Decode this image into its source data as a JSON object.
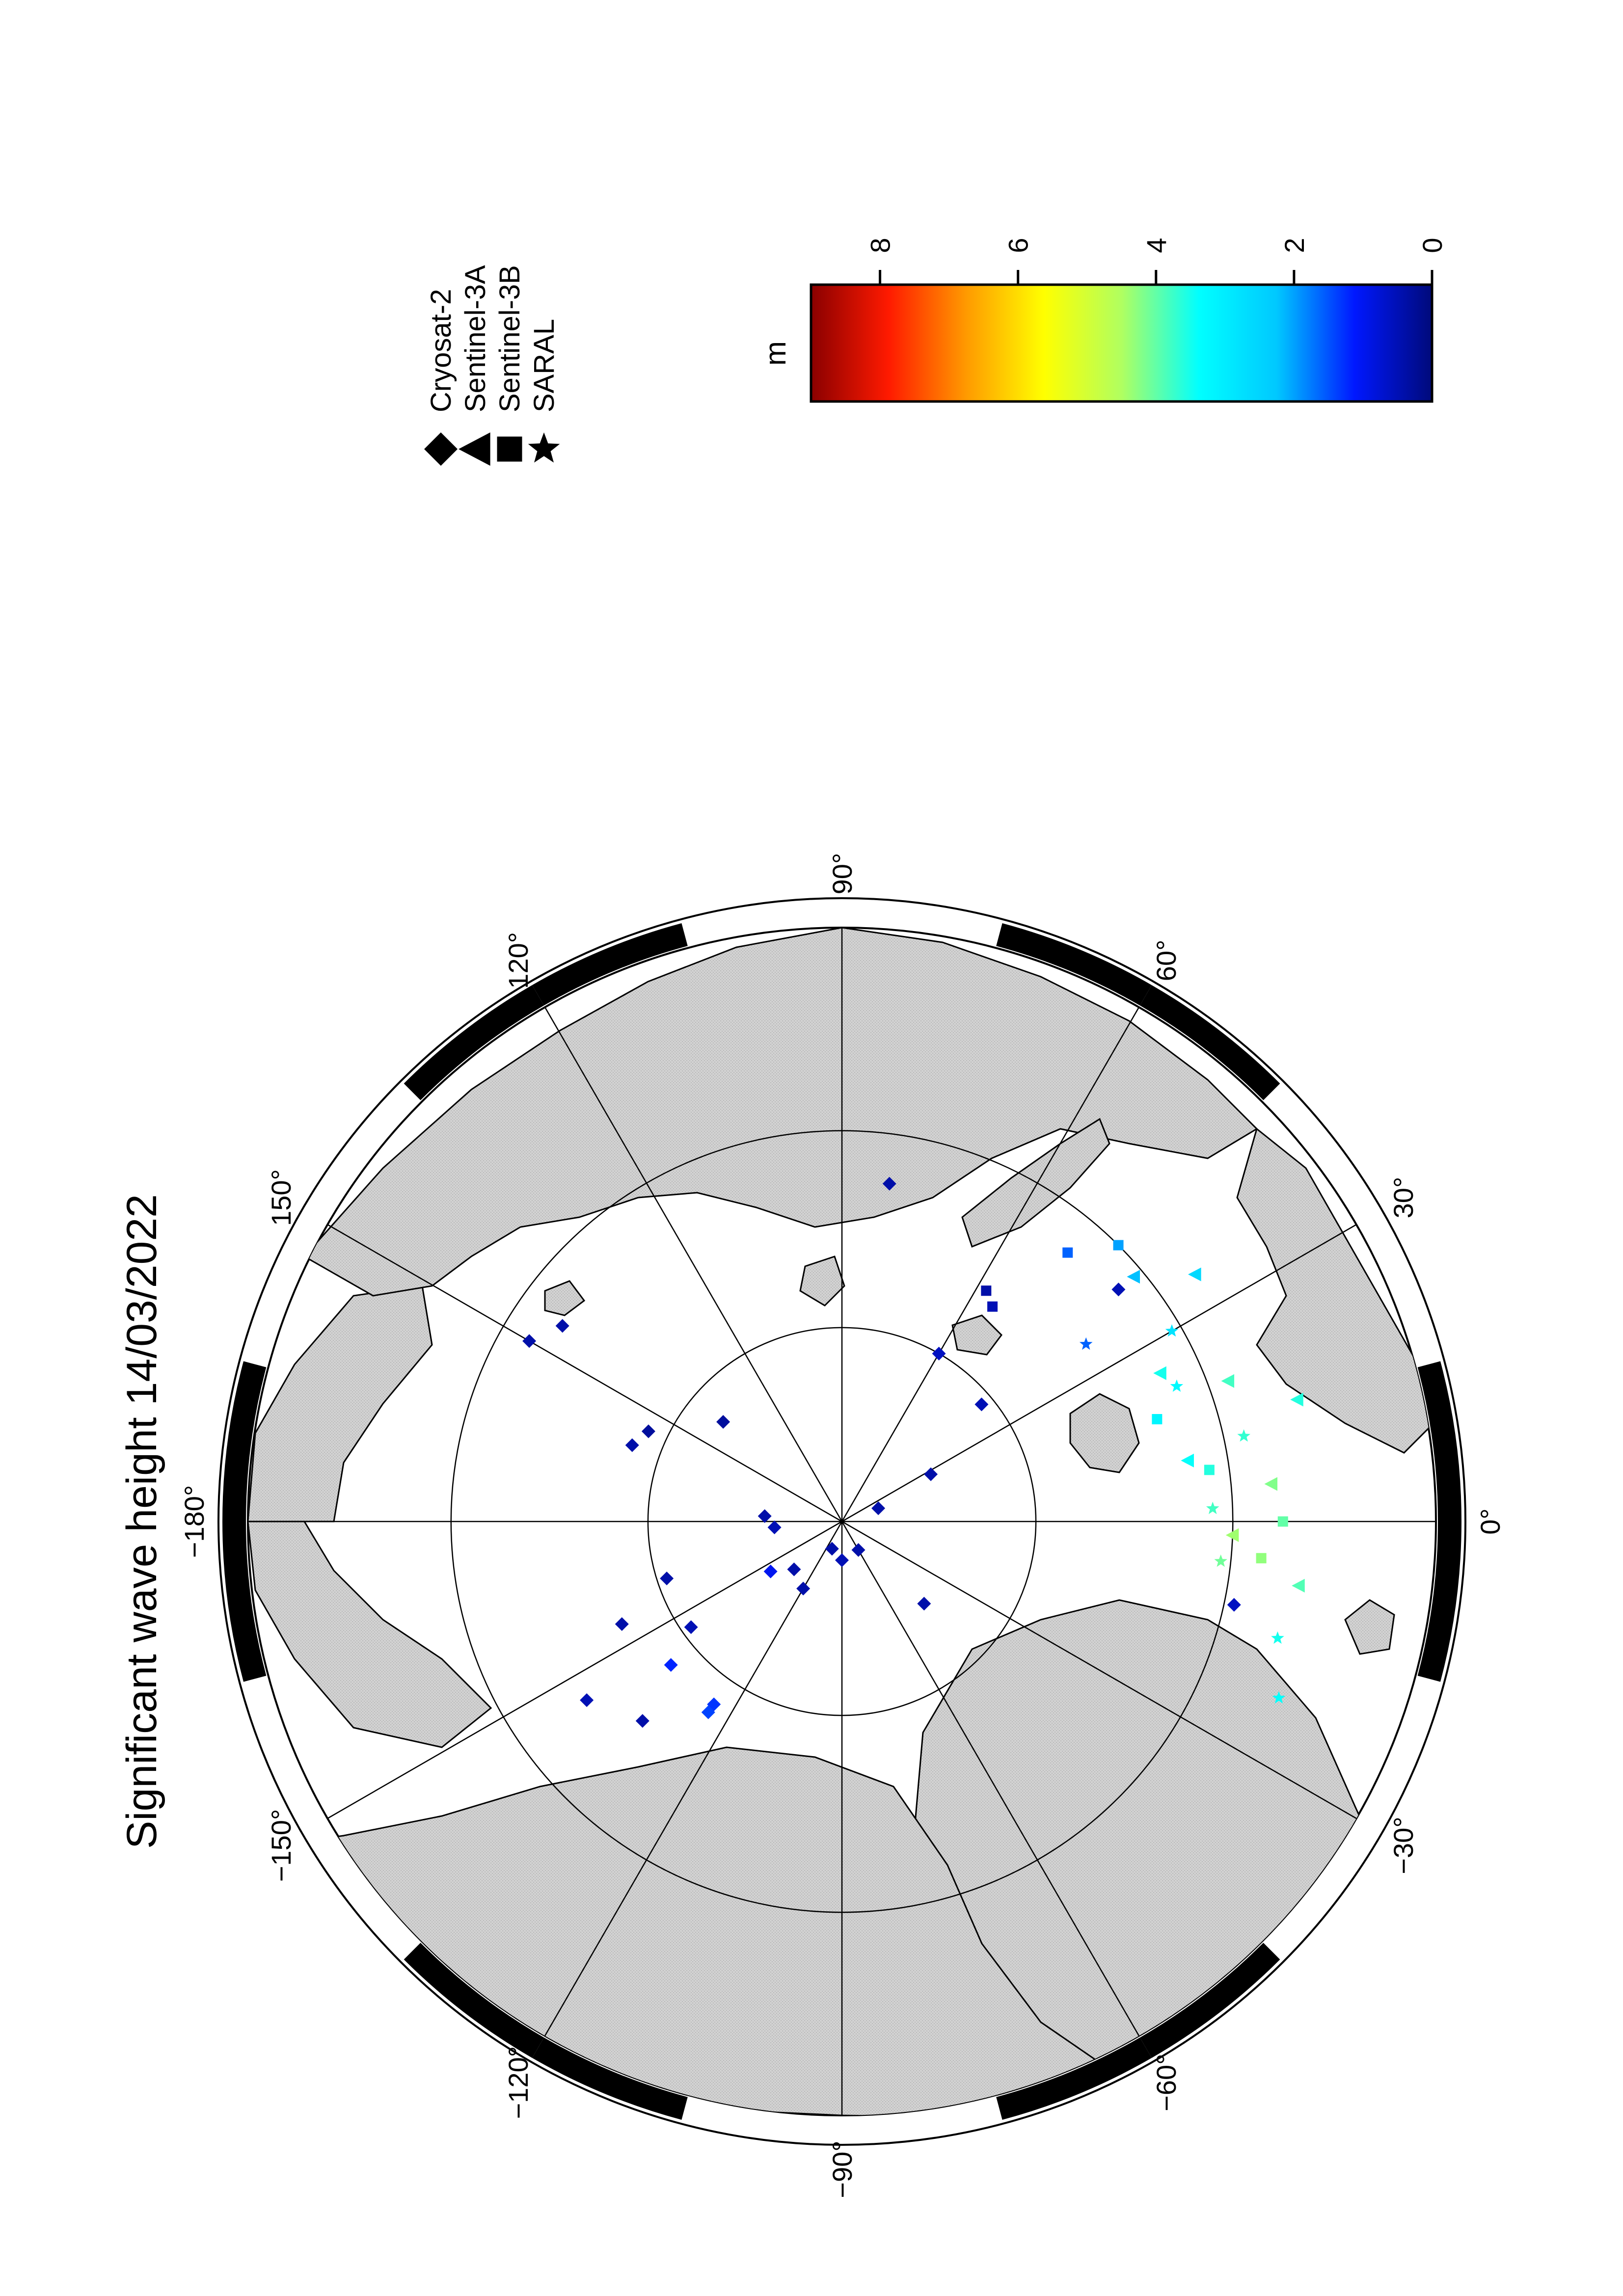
{
  "title": "Significant wave height 14/03/2022",
  "colorbar": {
    "unit": "m",
    "min": 0,
    "max": 9,
    "ticks": [
      0,
      2,
      4,
      6,
      8
    ],
    "stops": [
      "#000a7a",
      "#0018ff",
      "#00c8ff",
      "#00ffff",
      "#b0ff60",
      "#ffff00",
      "#ff9a00",
      "#ff1a00",
      "#8a0000"
    ]
  },
  "legend": {
    "items": [
      {
        "label": "Cryosat-2",
        "marker": "diamond"
      },
      {
        "label": "Sentinel-3A",
        "marker": "triangle"
      },
      {
        "label": "Sentinel-3B",
        "marker": "square"
      },
      {
        "label": "SARAL",
        "marker": "star"
      }
    ]
  },
  "map": {
    "projection": "polar-stereographic-north",
    "graticule_longitudes": [
      0,
      30,
      60,
      90,
      120,
      150,
      -180,
      -150,
      -120,
      -90,
      -60,
      -30
    ],
    "longitude_labels": [
      "0°",
      "30°",
      "60°",
      "90°",
      "120°",
      "150°",
      "−180°",
      "−150°",
      "−120°",
      "−90°",
      "−60°",
      "−30°"
    ],
    "latitude_circles": [
      70,
      80
    ]
  },
  "chart_data": {
    "type": "scatter",
    "title": "Significant wave height 14/03/2022",
    "colorbar_label": "m",
    "colorbar_range": [
      0,
      9
    ],
    "series": [
      {
        "name": "Cryosat-2",
        "marker": "diamond",
        "points": [
          {
            "lon": 145,
            "lat": 72.5,
            "swh": 0.4
          },
          {
            "lon": 150,
            "lat": 71.5,
            "swh": 0.4
          },
          {
            "lon": 155,
            "lat": 79.0,
            "swh": 0.3
          },
          {
            "lon": 160,
            "lat": 78.5,
            "swh": 0.4
          },
          {
            "lon": 140,
            "lat": 82.0,
            "swh": 0.3
          },
          {
            "lon": 176,
            "lat": 86.0,
            "swh": 0.4
          },
          {
            "lon": -110,
            "lat": 88.5,
            "swh": 0.4
          },
          {
            "lon": -90,
            "lat": 88.0,
            "swh": 0.5
          },
          {
            "lon": -60,
            "lat": 88.3,
            "swh": 0.4
          },
          {
            "lon": 20,
            "lat": 88.0,
            "swh": 0.4
          },
          {
            "lon": -175,
            "lat": 86.5,
            "swh": 0.5
          },
          {
            "lon": -145,
            "lat": 85.5,
            "swh": 1.0
          },
          {
            "lon": -135,
            "lat": 86.5,
            "swh": 0.4
          },
          {
            "lon": -120,
            "lat": 86.0,
            "swh": 0.4
          },
          {
            "lon": -162,
            "lat": 80.5,
            "swh": 0.4
          },
          {
            "lon": -145,
            "lat": 80.5,
            "swh": 0.5
          },
          {
            "lon": -155,
            "lat": 77.5,
            "swh": 0.4
          },
          {
            "lon": -140,
            "lat": 78.5,
            "swh": 1.2
          },
          {
            "lon": -125,
            "lat": 78.5,
            "swh": 1.3
          },
          {
            "lon": -125,
            "lat": 78.0,
            "swh": 1.4
          },
          {
            "lon": -145,
            "lat": 74.0,
            "swh": 0.5
          },
          {
            "lon": -135,
            "lat": 75.5,
            "swh": 0.4
          },
          {
            "lon": -45,
            "lat": 84.0,
            "swh": 0.4
          },
          {
            "lon": 28,
            "lat": 84.8,
            "swh": 0.4
          },
          {
            "lon": 40,
            "lat": 80.6,
            "swh": 0.5
          },
          {
            "lon": 60,
            "lat": 80.0,
            "swh": 0.6
          },
          {
            "lon": -12,
            "lat": 69.5,
            "swh": 0.6
          },
          {
            "lon": 82,
            "lat": 72.5,
            "swh": 0.4
          },
          {
            "lon": 40,
            "lat": 71.5,
            "swh": 0.5
          }
        ]
      },
      {
        "name": "Sentinel-3A",
        "marker": "triangle",
        "points": [
          {
            "lon": 25,
            "lat": 72.0,
            "swh": 3.5
          },
          {
            "lon": 20,
            "lat": 69.0,
            "swh": 3.8
          },
          {
            "lon": 15,
            "lat": 66.0,
            "swh": 3.6
          },
          {
            "lon": 10,
            "lat": 72.0,
            "swh": 3.4
          },
          {
            "lon": 5,
            "lat": 68.0,
            "swh": 4.2
          },
          {
            "lon": -2,
            "lat": 70.0,
            "swh": 4.4
          },
          {
            "lon": -8,
            "lat": 66.5,
            "swh": 3.9
          },
          {
            "lon": 35,
            "lat": 68.0,
            "swh": 2.6
          },
          {
            "lon": 40,
            "lat": 70.5,
            "swh": 2.2
          }
        ]
      },
      {
        "name": "Sentinel-3B",
        "marker": "square",
        "points": [
          {
            "lon": 50,
            "lat": 72.0,
            "swh": 1.6
          },
          {
            "lon": 45,
            "lat": 70.0,
            "swh": 2.0
          },
          {
            "lon": 55,
            "lat": 76.5,
            "swh": 0.5
          },
          {
            "lon": 58,
            "lat": 76.0,
            "swh": 0.4
          },
          {
            "lon": 18,
            "lat": 73.0,
            "swh": 3.2
          },
          {
            "lon": 8,
            "lat": 71.0,
            "swh": 3.6
          },
          {
            "lon": 0,
            "lat": 67.5,
            "swh": 4.0
          },
          {
            "lon": -5,
            "lat": 68.5,
            "swh": 4.3
          }
        ]
      },
      {
        "name": "SARAL",
        "marker": "star",
        "points": [
          {
            "lon": 30,
            "lat": 70.5,
            "swh": 2.8
          },
          {
            "lon": 22,
            "lat": 71.5,
            "swh": 3.3
          },
          {
            "lon": 12,
            "lat": 69.0,
            "swh": 3.7
          },
          {
            "lon": 2,
            "lat": 71.0,
            "swh": 3.8
          },
          {
            "lon": -6,
            "lat": 70.5,
            "swh": 4.1
          },
          {
            "lon": -15,
            "lat": 67.0,
            "swh": 3.5
          },
          {
            "lon": -22,
            "lat": 66.0,
            "swh": 3.4
          },
          {
            "lon": 36,
            "lat": 74.5,
            "swh": 1.6
          }
        ]
      }
    ]
  }
}
